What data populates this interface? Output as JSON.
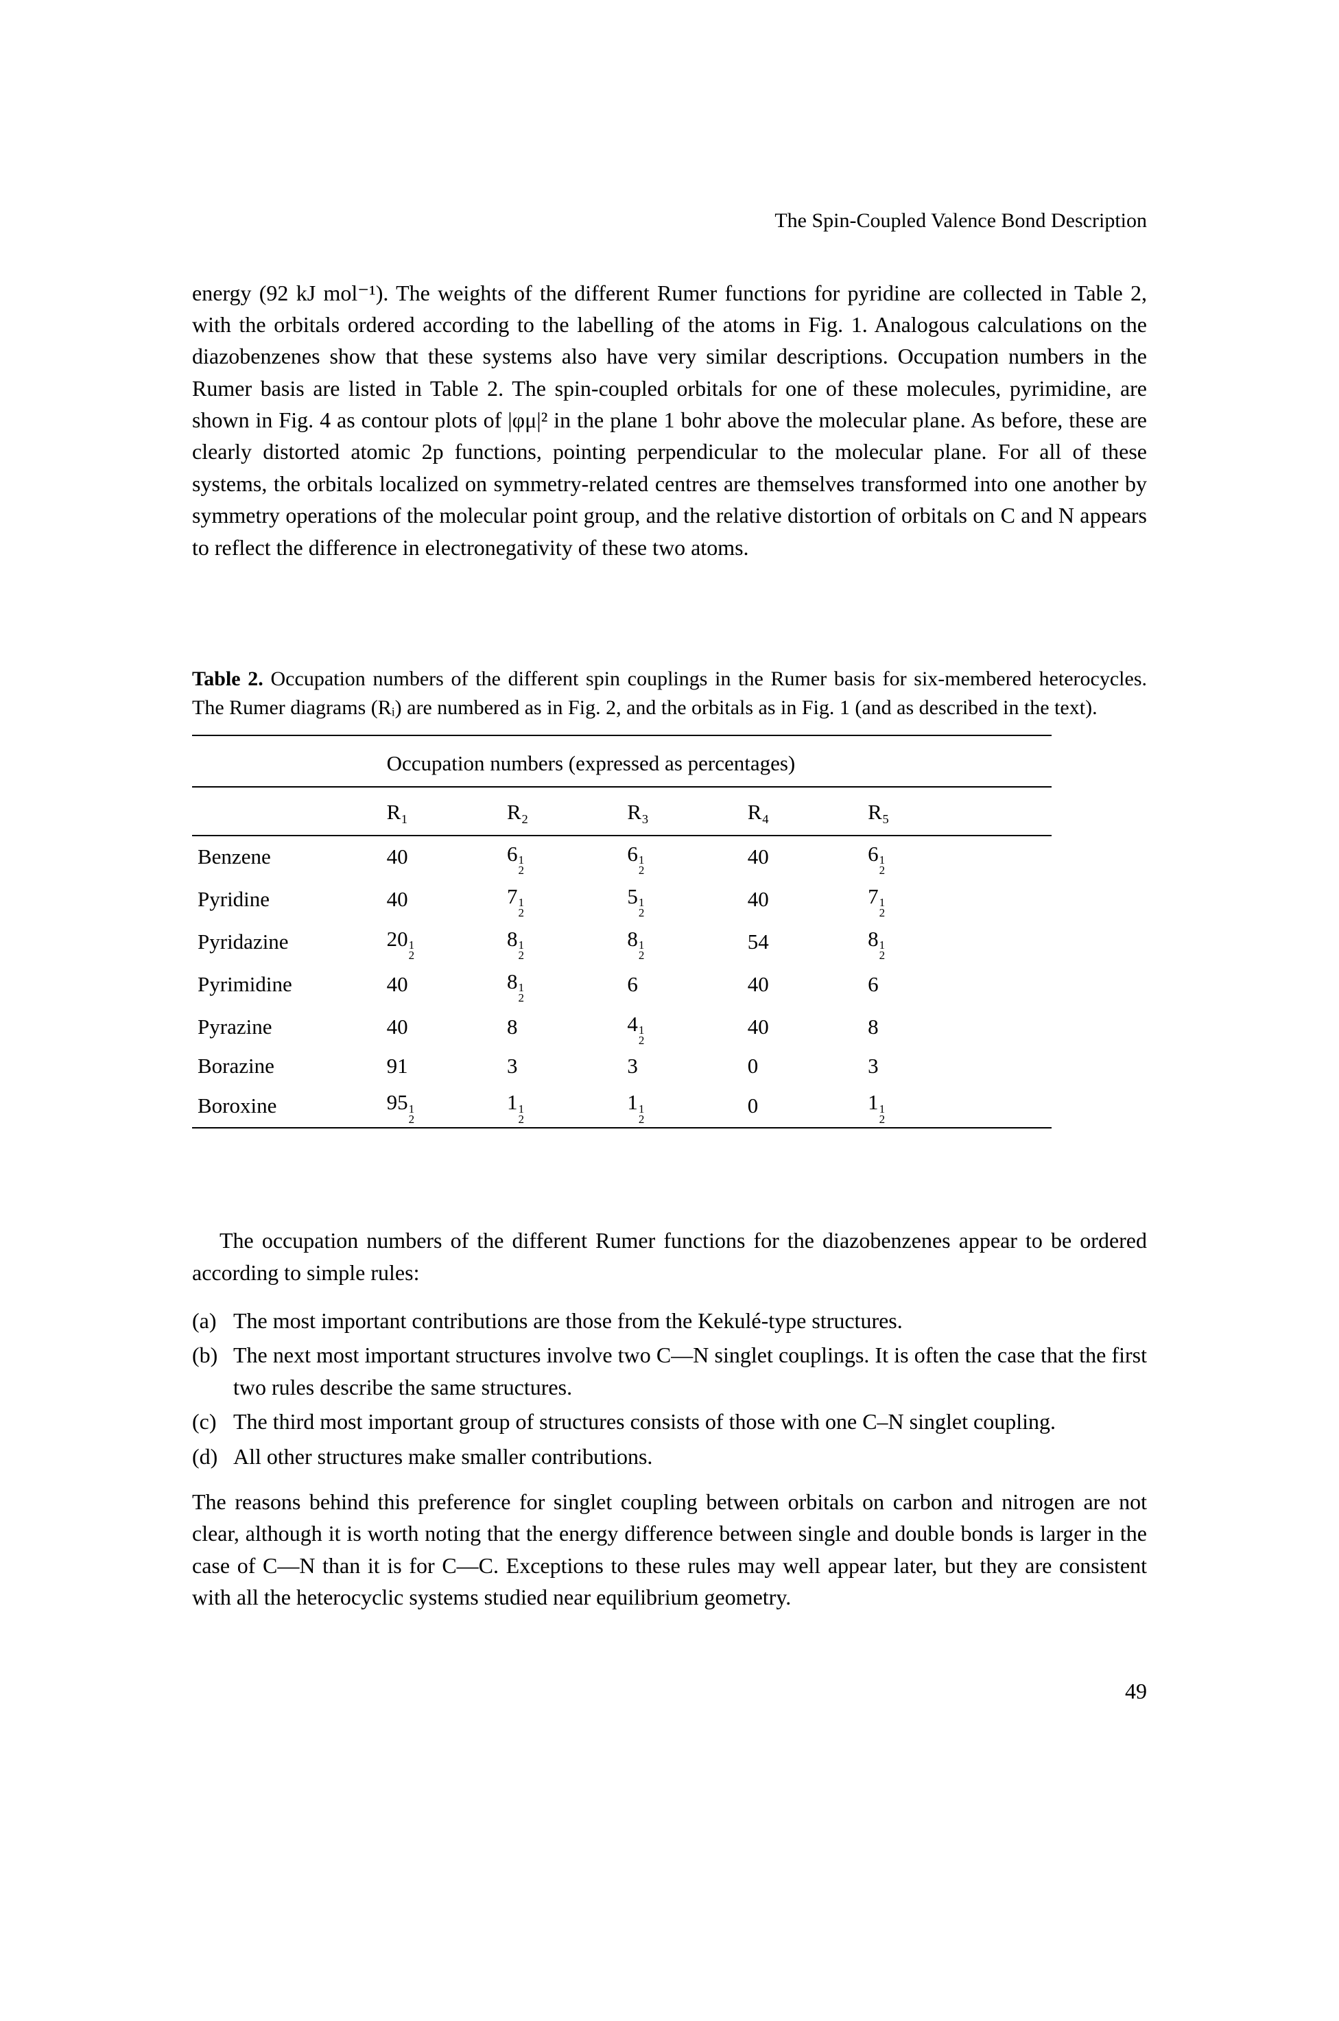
{
  "runningHead": "The Spin-Coupled Valence Bond Description",
  "para1": "energy (92 kJ mol⁻¹). The weights of the different Rumer functions for pyridine are collected in Table 2, with the orbitals ordered according to the labelling of the atoms in Fig. 1. Analogous calculations on the diazobenzenes show that these systems also have very similar descriptions. Occupation numbers in the Rumer basis are listed in Table 2. The spin-coupled orbitals for one of these molecules, pyrimidine, are shown in Fig. 4 as contour plots of |φμ|² in the plane 1 bohr above the molecular plane. As before, these are clearly distorted atomic 2p functions, pointing perpendicular to the molecular plane. For all of these systems, the orbitals localized on symmetry-related centres are themselves transformed into one another by symmetry operations of the molecular point group, and the relative distortion of orbitals on C and N appears to reflect the difference in electronegativity of these two atoms.",
  "tableCaptionBold": "Table 2.",
  "tableCaptionRest": " Occupation numbers of the different spin couplings in the Rumer basis for six-membered heterocycles. The Rumer diagrams (Rᵢ) are numbered as in Fig. 2, and the orbitals as in Fig. 1 (and as described in the text).",
  "tableSpanHead": "Occupation numbers (expressed as percentages)",
  "tableCols": [
    "R₁",
    "R₂",
    "R₃",
    "R₄",
    "R₅"
  ],
  "tableRows": [
    {
      "label": "Benzene",
      "cells": [
        {
          "w": "40"
        },
        {
          "w": "6",
          "f": true
        },
        {
          "w": "6",
          "f": true
        },
        {
          "w": "40"
        },
        {
          "w": "6",
          "f": true
        }
      ]
    },
    {
      "label": "Pyridine",
      "cells": [
        {
          "w": "40"
        },
        {
          "w": "7",
          "f": true
        },
        {
          "w": "5",
          "f": true
        },
        {
          "w": "40"
        },
        {
          "w": "7",
          "f": true
        }
      ]
    },
    {
      "label": "Pyridazine",
      "cells": [
        {
          "w": "20",
          "f": true
        },
        {
          "w": "8",
          "f": true
        },
        {
          "w": "8",
          "f": true
        },
        {
          "w": "54"
        },
        {
          "w": "8",
          "f": true
        }
      ]
    },
    {
      "label": "Pyrimidine",
      "cells": [
        {
          "w": "40"
        },
        {
          "w": "8",
          "f": true
        },
        {
          "w": "6"
        },
        {
          "w": "40"
        },
        {
          "w": "6"
        }
      ]
    },
    {
      "label": "Pyrazine",
      "cells": [
        {
          "w": "40"
        },
        {
          "w": "8"
        },
        {
          "w": "4",
          "f": true
        },
        {
          "w": "40"
        },
        {
          "w": "8"
        }
      ]
    },
    {
      "label": "Borazine",
      "cells": [
        {
          "w": "91"
        },
        {
          "w": "3"
        },
        {
          "w": "3"
        },
        {
          "w": "0"
        },
        {
          "w": "3"
        }
      ]
    },
    {
      "label": "Boroxine",
      "cells": [
        {
          "w": "95",
          "f": true
        },
        {
          "w": "1",
          "f": true
        },
        {
          "w": "1",
          "f": true
        },
        {
          "w": "0"
        },
        {
          "w": "1",
          "f": true
        }
      ]
    }
  ],
  "para2": "The occupation numbers of the different Rumer functions for the diazobenzenes appear to be ordered according to simple rules:",
  "listItems": [
    {
      "marker": "(a)",
      "text": "The most important contributions are those from the Kekulé-type structures."
    },
    {
      "marker": "(b)",
      "text": "The next most important structures involve two C—N singlet couplings. It is often the case that the first two rules describe the same structures."
    },
    {
      "marker": "(c)",
      "text": "The third most important group of structures consists of those with one C–N singlet coupling."
    },
    {
      "marker": "(d)",
      "text": "All other structures make smaller contributions."
    }
  ],
  "para3": "The reasons behind this preference for singlet coupling between orbitals on carbon and nitrogen are not clear, although it is worth noting that the energy difference between single and double bonds is larger in the case of C—N than it is for C—C. Exceptions to these rules may well appear later, but they are consistent with all the heterocyclic systems studied near equilibrium geometry.",
  "pageNumber": "49"
}
